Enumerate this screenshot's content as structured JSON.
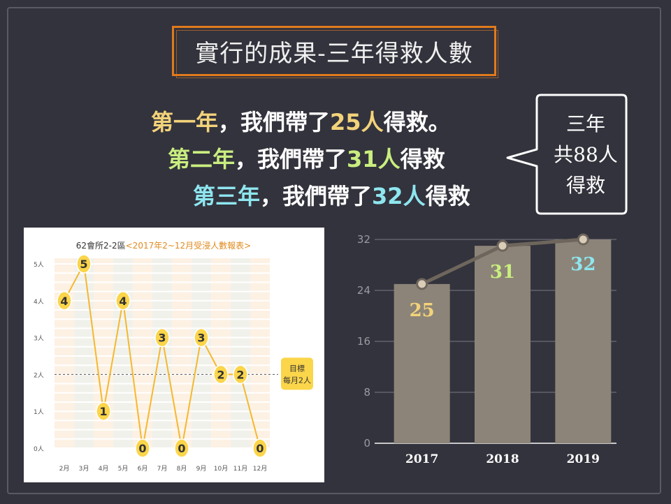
{
  "title": "實行的成果-三年得救人數",
  "statements": [
    {
      "lead": "第一年",
      "mid": "，我們帶了",
      "num": "25人",
      "tail": "得救。"
    },
    {
      "lead": "第二年",
      "mid": "，我們帶了",
      "num": "31人",
      "tail": "得救"
    },
    {
      "lead": "第三年",
      "mid": "，我們帶了",
      "num": "32人",
      "tail": "得救"
    }
  ],
  "bubble": {
    "line1": "三年",
    "line2": "共88人",
    "line3": "得救"
  },
  "colors": {
    "background": "#33333d",
    "title_border": "#e07a1c",
    "year1": "#f3d37a",
    "year2": "#c9ee7f",
    "year3": "#8ee6ef",
    "bar": "#8c8478",
    "line": "#6e665c",
    "dot": "#d9cdb8",
    "monthly_line": "#f5b82e",
    "monthly_marker": "#fbd54a"
  },
  "chart_data": [
    {
      "type": "line",
      "title_prefix": "62會所2-2區",
      "title_highlight": "<2017年2~12月受浸人數報表>",
      "categories": [
        "2月",
        "3月",
        "4月",
        "5月",
        "6月",
        "7月",
        "8月",
        "9月",
        "10月",
        "11月",
        "12月"
      ],
      "values": [
        4,
        5,
        1,
        4,
        0,
        3,
        0,
        3,
        2,
        2,
        0
      ],
      "y_ticks": [
        "0人",
        "1人",
        "2人",
        "3人",
        "4人",
        "5人"
      ],
      "ylim": [
        0,
        5
      ],
      "target_value": 2,
      "target_label_1": "目標",
      "target_label_2": "每月2人",
      "grid": true
    },
    {
      "type": "bar",
      "categories": [
        "2017",
        "2018",
        "2019"
      ],
      "values": [
        25,
        31,
        32
      ],
      "data_labels": [
        "25",
        "31",
        "32"
      ],
      "y_ticks": [
        "0",
        "8",
        "16",
        "24",
        "32"
      ],
      "ylim": [
        0,
        32
      ],
      "overlay_line": true,
      "grid": true
    }
  ]
}
